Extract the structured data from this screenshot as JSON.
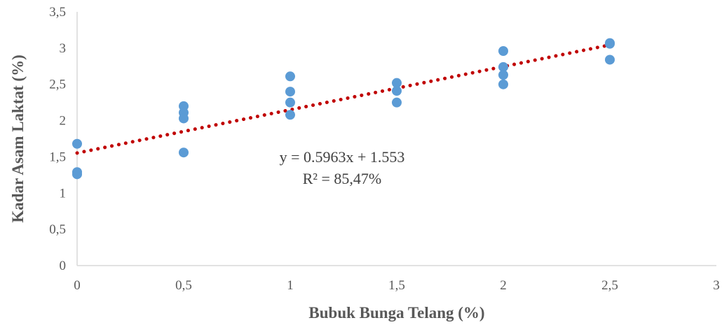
{
  "chart_data": {
    "type": "scatter",
    "title": "",
    "xlabel": "Bubuk Bunga Telang (%)",
    "ylabel": "Kadar Asam Laktat (%)",
    "xlim": [
      0,
      3
    ],
    "ylim": [
      0,
      3.5
    ],
    "x_ticks": [
      "0",
      "0,5",
      "1",
      "1,5",
      "2",
      "2,5",
      "3"
    ],
    "y_ticks": [
      "0",
      "0,5",
      "1",
      "1,5",
      "2",
      "2,5",
      "3",
      "3,5"
    ],
    "grid": false,
    "legend": "none",
    "series": [
      {
        "points": [
          {
            "x": 0,
            "y": 1.68
          },
          {
            "x": 0,
            "y": 1.29
          },
          {
            "x": 0,
            "y": 1.26
          },
          {
            "x": 0.5,
            "y": 2.2
          },
          {
            "x": 0.5,
            "y": 2.11
          },
          {
            "x": 0.5,
            "y": 2.03
          },
          {
            "x": 0.5,
            "y": 1.56
          },
          {
            "x": 1,
            "y": 2.61
          },
          {
            "x": 1,
            "y": 2.4
          },
          {
            "x": 1,
            "y": 2.25
          },
          {
            "x": 1,
            "y": 2.08
          },
          {
            "x": 1.5,
            "y": 2.52
          },
          {
            "x": 1.5,
            "y": 2.41
          },
          {
            "x": 1.5,
            "y": 2.25
          },
          {
            "x": 2,
            "y": 2.96
          },
          {
            "x": 2,
            "y": 2.74
          },
          {
            "x": 2,
            "y": 2.63
          },
          {
            "x": 2,
            "y": 2.5
          },
          {
            "x": 2.5,
            "y": 3.07
          },
          {
            "x": 2.5,
            "y": 3.06
          },
          {
            "x": 2.5,
            "y": 2.84
          }
        ]
      }
    ],
    "trendline": {
      "type": "linear",
      "slope": 0.5963,
      "intercept": 1.553,
      "x_range": [
        0,
        2.5
      ],
      "equation": "y = 0.5963x + 1.553",
      "r_squared": "R² = 85,47%"
    },
    "colors": {
      "marker": "#5B9BD5",
      "trendline": "#C00000",
      "axis": "#D9D9D9",
      "text": "#595959"
    }
  }
}
